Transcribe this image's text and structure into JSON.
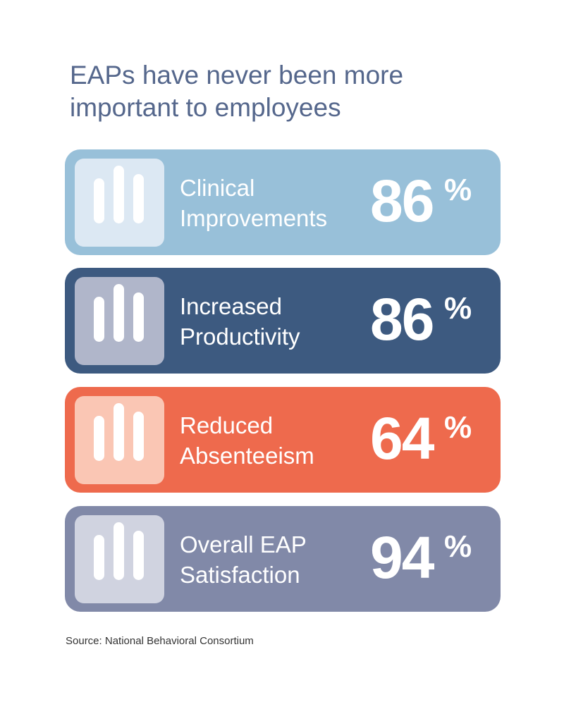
{
  "title": "EAPs have never been more important to employees",
  "cards": [
    {
      "label_line1": "Clinical",
      "label_line2": "Improvements",
      "value": "86",
      "unit": "%",
      "color": "#98c0d9",
      "icon_color": "#dce8f3",
      "icon": "bar-chart-icon"
    },
    {
      "label_line1": "Increased",
      "label_line2": "Productivity",
      "value": "86",
      "unit": "%",
      "color": "#3d5a80",
      "icon_color": "#b0b6ca",
      "icon": "bar-chart-icon"
    },
    {
      "label_line1": "Reduced",
      "label_line2": "Absenteeism",
      "value": "64",
      "unit": "%",
      "color": "#ee6a4d",
      "icon_color": "#fac6b4",
      "icon": "bar-chart-icon"
    },
    {
      "label_line1": "Overall EAP",
      "label_line2": "Satisfaction",
      "value": "94",
      "unit": "%",
      "color": "#8189a8",
      "icon_color": "#d0d3e0",
      "icon": "bar-chart-icon"
    }
  ],
  "source": "Source: National Behavioral Consortium"
}
